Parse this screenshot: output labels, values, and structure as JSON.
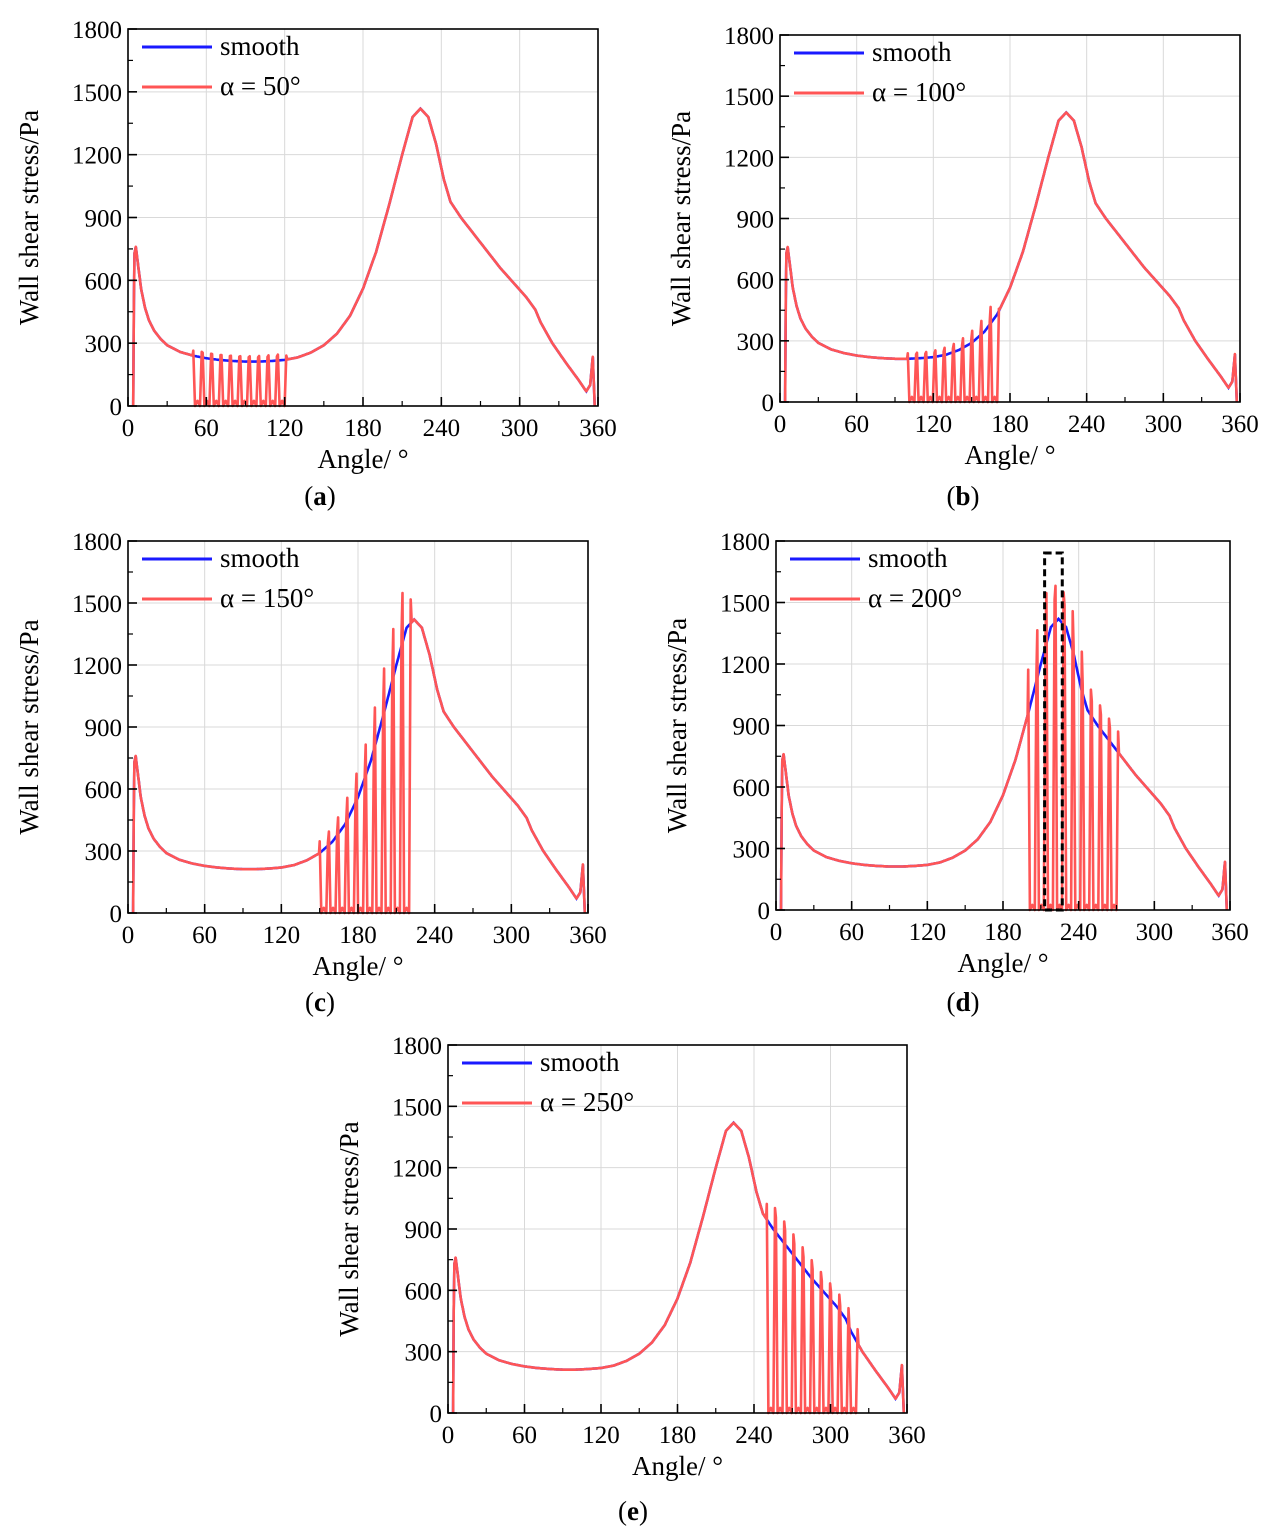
{
  "figure": {
    "panels": [
      "a",
      "b",
      "c",
      "d",
      "e"
    ]
  },
  "colors": {
    "smooth": "#1a1aff",
    "grooved": "#ff5555",
    "grid": "#d9d9d9",
    "highlight_box": "#000000"
  },
  "chart_data": [
    {
      "panel_label": "a",
      "type": "line",
      "xlabel": "Angle/ °",
      "ylabel": "Wall shear stress/Pa",
      "xlim": [
        0,
        360
      ],
      "ylim": [
        0,
        1800
      ],
      "xticks": [
        "0",
        "60",
        "120",
        "180",
        "240",
        "300",
        "360"
      ],
      "yticks": [
        "0",
        "300",
        "600",
        "900",
        "1200",
        "1500",
        "1800"
      ],
      "grid": true,
      "legend_position": "top-left",
      "series": [
        {
          "name": "smooth",
          "color": "#1a1aff"
        },
        {
          "name": "α = 50°",
          "color": "#ff5555",
          "groove_start_deg": 50,
          "groove_end_deg": 122,
          "groove_count": 10
        }
      ]
    },
    {
      "panel_label": "b",
      "type": "line",
      "xlabel": "Angle/ °",
      "ylabel": "Wall shear stress/Pa",
      "xlim": [
        0,
        360
      ],
      "ylim": [
        0,
        1800
      ],
      "xticks": [
        "0",
        "60",
        "120",
        "180",
        "240",
        "300",
        "360"
      ],
      "yticks": [
        "0",
        "300",
        "600",
        "900",
        "1200",
        "1500",
        "1800"
      ],
      "grid": true,
      "legend_position": "top-left",
      "series": [
        {
          "name": "smooth",
          "color": "#1a1aff"
        },
        {
          "name": "α = 100°",
          "color": "#ff5555",
          "groove_start_deg": 100,
          "groove_end_deg": 172,
          "groove_count": 10
        }
      ]
    },
    {
      "panel_label": "c",
      "type": "line",
      "xlabel": "Angle/ °",
      "ylabel": "Wall shear stress/Pa",
      "xlim": [
        0,
        360
      ],
      "ylim": [
        0,
        1800
      ],
      "xticks": [
        "0",
        "60",
        "120",
        "180",
        "240",
        "300",
        "360"
      ],
      "yticks": [
        "0",
        "300",
        "600",
        "900",
        "1200",
        "1500",
        "1800"
      ],
      "grid": true,
      "legend_position": "top-left",
      "series": [
        {
          "name": "smooth",
          "color": "#1a1aff"
        },
        {
          "name": "α = 150°",
          "color": "#ff5555",
          "groove_start_deg": 150,
          "groove_end_deg": 222,
          "groove_count": 10
        }
      ]
    },
    {
      "panel_label": "d",
      "type": "line",
      "xlabel": "Angle/ °",
      "ylabel": "Wall shear stress/Pa",
      "xlim": [
        0,
        360
      ],
      "ylim": [
        0,
        1800
      ],
      "xticks": [
        "0",
        "60",
        "120",
        "180",
        "240",
        "300",
        "360"
      ],
      "yticks": [
        "0",
        "300",
        "600",
        "900",
        "1200",
        "1500",
        "1800"
      ],
      "grid": true,
      "legend_position": "top-left",
      "highlight_box_deg": [
        213,
        227
      ],
      "series": [
        {
          "name": "smooth",
          "color": "#1a1aff"
        },
        {
          "name": "α = 200°",
          "color": "#ff5555",
          "groove_start_deg": 200,
          "groove_end_deg": 272,
          "groove_count": 10
        }
      ]
    },
    {
      "panel_label": "e",
      "type": "line",
      "xlabel": "Angle/ °",
      "ylabel": "Wall shear stress/Pa",
      "xlim": [
        0,
        360
      ],
      "ylim": [
        0,
        1800
      ],
      "xticks": [
        "0",
        "60",
        "120",
        "180",
        "240",
        "300",
        "360"
      ],
      "yticks": [
        "0",
        "300",
        "600",
        "900",
        "1200",
        "1500",
        "1800"
      ],
      "grid": true,
      "legend_position": "top-left",
      "series": [
        {
          "name": "smooth",
          "color": "#1a1aff"
        },
        {
          "name": "α = 250°",
          "color": "#ff5555",
          "groove_start_deg": 250,
          "groove_end_deg": 322,
          "groove_count": 10
        }
      ]
    }
  ],
  "smooth_profile": [
    [
      4,
      0
    ],
    [
      4.5,
      500
    ],
    [
      5,
      730
    ],
    [
      6,
      760
    ],
    [
      8,
      660
    ],
    [
      10,
      560
    ],
    [
      13,
      470
    ],
    [
      16,
      410
    ],
    [
      20,
      360
    ],
    [
      25,
      320
    ],
    [
      30,
      290
    ],
    [
      40,
      258
    ],
    [
      50,
      240
    ],
    [
      60,
      228
    ],
    [
      70,
      220
    ],
    [
      80,
      215
    ],
    [
      90,
      212
    ],
    [
      100,
      212
    ],
    [
      110,
      215
    ],
    [
      120,
      220
    ],
    [
      130,
      232
    ],
    [
      140,
      255
    ],
    [
      150,
      290
    ],
    [
      160,
      345
    ],
    [
      170,
      430
    ],
    [
      180,
      560
    ],
    [
      190,
      735
    ],
    [
      200,
      960
    ],
    [
      210,
      1200
    ],
    [
      218,
      1380
    ],
    [
      224,
      1420
    ],
    [
      230,
      1380
    ],
    [
      236,
      1250
    ],
    [
      242,
      1080
    ],
    [
      247,
      975
    ],
    [
      255,
      900
    ],
    [
      265,
      820
    ],
    [
      275,
      740
    ],
    [
      285,
      660
    ],
    [
      295,
      590
    ],
    [
      305,
      520
    ],
    [
      312,
      460
    ],
    [
      316,
      400
    ],
    [
      325,
      300
    ],
    [
      335,
      210
    ],
    [
      345,
      125
    ],
    [
      351,
      70
    ],
    [
      354,
      100
    ],
    [
      356,
      235
    ],
    [
      357.5,
      0
    ]
  ]
}
